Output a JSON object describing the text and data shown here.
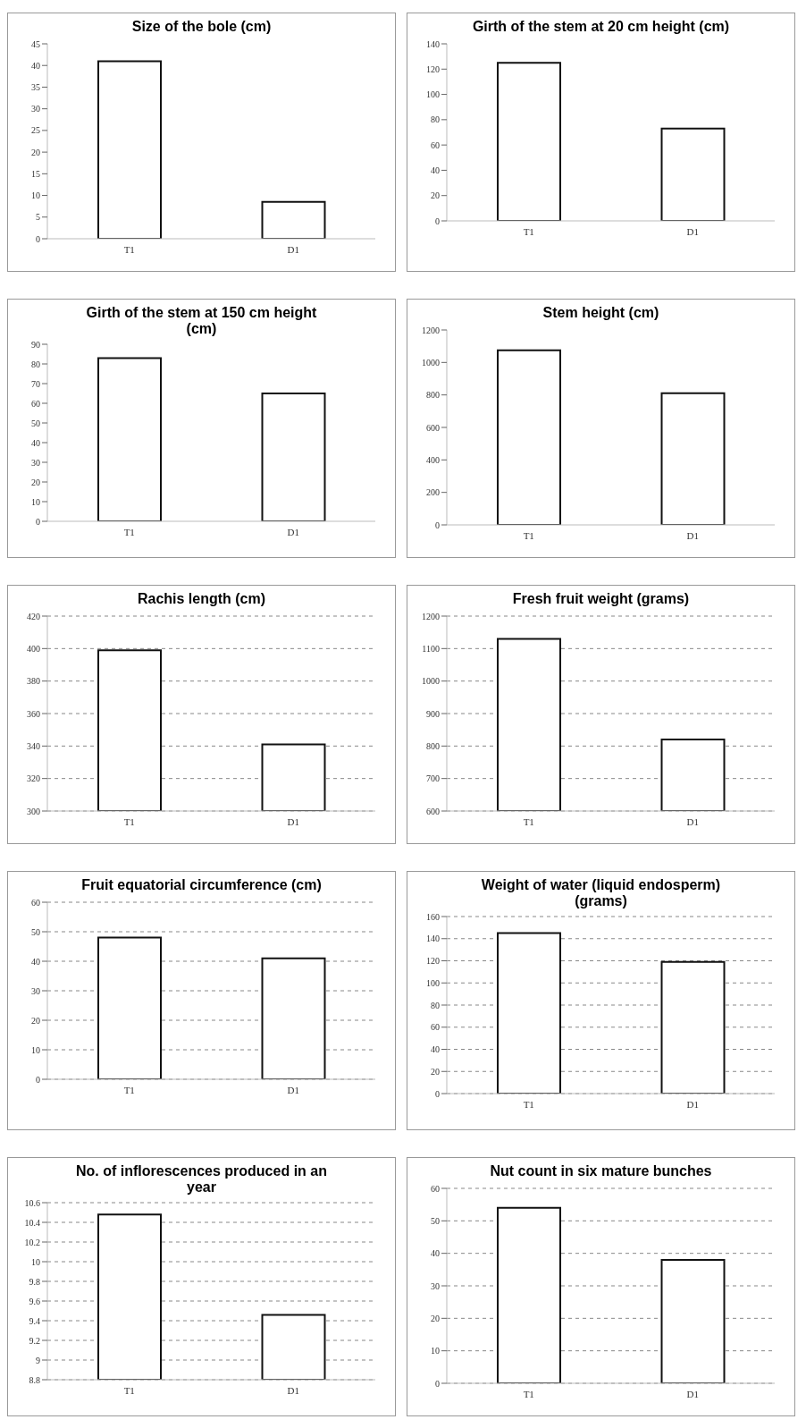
{
  "chart_data": [
    {
      "type": "bar",
      "title": "Size of the bole (cm)",
      "categories": [
        "T1",
        "D1"
      ],
      "values": [
        41,
        8.5
      ],
      "color": "#ffffff",
      "ylim": [
        0,
        45
      ],
      "yticks": [
        0,
        5,
        10,
        15,
        20,
        25,
        30,
        35,
        40,
        45
      ],
      "grid": false
    },
    {
      "type": "bar",
      "title": "Girth of the stem at 20 cm height (cm)",
      "categories": [
        "T1",
        "D1"
      ],
      "values": [
        125,
        73
      ],
      "color": "#ffffff",
      "ylim": [
        0,
        140
      ],
      "yticks": [
        0,
        20,
        40,
        60,
        80,
        100,
        120,
        140
      ],
      "grid": false
    },
    {
      "type": "bar",
      "title": "Girth of the stem at 150 cm height (cm)",
      "categories": [
        "T1",
        "D1"
      ],
      "values": [
        83,
        65
      ],
      "color": "#ffffff",
      "ylim": [
        0,
        90
      ],
      "yticks": [
        0,
        10,
        20,
        30,
        40,
        50,
        60,
        70,
        80,
        90
      ],
      "grid": false
    },
    {
      "type": "bar",
      "title": "Stem height (cm)",
      "categories": [
        "T1",
        "D1"
      ],
      "values": [
        1075,
        810
      ],
      "color": "#ffffff",
      "ylim": [
        0,
        1200
      ],
      "yticks": [
        0,
        200,
        400,
        600,
        800,
        1000,
        1200
      ],
      "grid": false
    },
    {
      "type": "bar",
      "title": "Rachis length (cm)",
      "categories": [
        "T1",
        "D1"
      ],
      "values": [
        399,
        341
      ],
      "color": "#ffffff",
      "ylim": [
        300,
        420
      ],
      "yticks": [
        300,
        320,
        340,
        360,
        380,
        400,
        420
      ],
      "grid": "y"
    },
    {
      "type": "bar",
      "title": "Fresh fruit weight (grams)",
      "categories": [
        "T1",
        "D1"
      ],
      "values": [
        1130,
        820
      ],
      "color": "#ffffff",
      "ylim": [
        600,
        1200
      ],
      "yticks": [
        600,
        700,
        800,
        900,
        1000,
        1100,
        1200
      ],
      "grid": "y"
    },
    {
      "type": "bar",
      "title": "Fruit equatorial circumference (cm)",
      "categories": [
        "T1",
        "D1"
      ],
      "values": [
        48,
        41
      ],
      "color": "#ffffff",
      "ylim": [
        0,
        60
      ],
      "yticks": [
        0,
        10,
        20,
        30,
        40,
        50,
        60
      ],
      "grid": "y"
    },
    {
      "type": "bar",
      "title": "Weight of water (liquid endosperm) (grams)",
      "categories": [
        "T1",
        "D1"
      ],
      "values": [
        145,
        119
      ],
      "color": "#ffffff",
      "ylim": [
        0,
        160
      ],
      "yticks": [
        0,
        20,
        40,
        60,
        80,
        100,
        120,
        140,
        160
      ],
      "grid": "y"
    },
    {
      "type": "bar",
      "title": "No. of inflorescences produced in an year",
      "categories": [
        "T1",
        "D1"
      ],
      "values": [
        10.48,
        9.46
      ],
      "color": "#ffffff",
      "ylim": [
        8.8,
        10.6
      ],
      "yticks": [
        8.8,
        9,
        9.2,
        9.4,
        9.6,
        9.8,
        10,
        10.2,
        10.4,
        10.6
      ],
      "grid": "y"
    },
    {
      "type": "bar",
      "title": "Nut count in six mature bunches",
      "categories": [
        "T1",
        "D1"
      ],
      "values": [
        54,
        38
      ],
      "color": "#ffffff",
      "ylim": [
        0,
        60
      ],
      "yticks": [
        0,
        10,
        20,
        30,
        40,
        50,
        60
      ],
      "grid": "y"
    }
  ]
}
